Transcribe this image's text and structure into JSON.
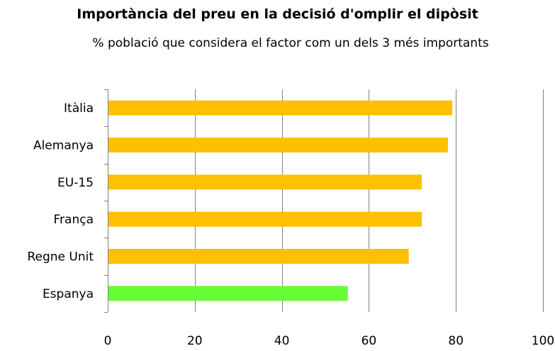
{
  "chart_data": {
    "type": "bar",
    "orientation": "horizontal",
    "title": "Importància del preu en la decisió d'omplir el dipòsit",
    "subtitle": "% població que considera el factor com un dels 3 més importants",
    "categories": [
      "Itàlia",
      "Alemanya",
      "EU-15",
      "França",
      "Regne Unit",
      "Espanya"
    ],
    "values": [
      79,
      78,
      72,
      72,
      69,
      55
    ],
    "bar_colors": [
      "#FFC000",
      "#FFC000",
      "#FFC000",
      "#FFC000",
      "#FFC000",
      "#66FF33"
    ],
    "xlim": [
      0,
      100
    ],
    "x_ticks": [
      0,
      20,
      40,
      60,
      80,
      100
    ],
    "x_tick_labels": [
      "0",
      "20",
      "40",
      "60",
      "80",
      "100"
    ],
    "grid": "vertical",
    "gridline_color": "#808080",
    "legend": "none"
  }
}
